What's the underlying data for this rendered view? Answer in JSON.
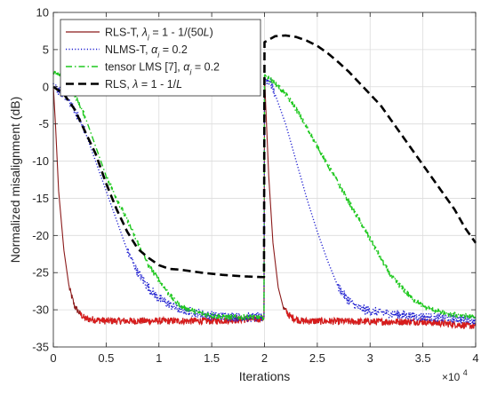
{
  "chart_data": {
    "type": "line",
    "xlabel": "Iterations",
    "ylabel": "Normalized misalignment (dB)",
    "x_multiplier_label": "×10",
    "x_multiplier_exp": "4",
    "xlim": [
      0,
      4
    ],
    "ylim": [
      -35,
      10
    ],
    "xticks": [
      0,
      0.5,
      1,
      1.5,
      2,
      2.5,
      3,
      3.5,
      4
    ],
    "xtick_labels": [
      "0",
      "0.5",
      "1",
      "1.5",
      "2",
      "2.5",
      "3",
      "3.5",
      "4"
    ],
    "yticks": [
      10,
      5,
      0,
      -5,
      -10,
      -15,
      -20,
      -25,
      -30,
      -35
    ],
    "ytick_labels": [
      "10",
      "5",
      "0",
      "-5",
      "-10",
      "-15",
      "-20",
      "-25",
      "-30",
      "-35"
    ],
    "grid": true,
    "legend_position": "top-left",
    "series": [
      {
        "name": "RLS-T, λ_i = 1 - 1/(50L)",
        "legend": [
          {
            "t": "RLS-T, "
          },
          {
            "t": "λ",
            "i": true
          },
          {
            "t": "i",
            "i": true,
            "sub": true
          },
          {
            "t": " = 1 - 1/(50"
          },
          {
            "t": "L",
            "i": true
          },
          {
            "t": ")"
          }
        ],
        "color": "#8B1A1A",
        "highlight_color": "#D81C1C",
        "dash": "solid",
        "noise": 0.45,
        "points": [
          [
            0,
            0
          ],
          [
            0.02,
            -5
          ],
          [
            0.05,
            -14
          ],
          [
            0.1,
            -22
          ],
          [
            0.15,
            -27
          ],
          [
            0.2,
            -29.5
          ],
          [
            0.25,
            -30.5
          ],
          [
            0.3,
            -31.2
          ],
          [
            0.5,
            -31.5
          ],
          [
            1.0,
            -31.5
          ],
          [
            1.5,
            -31.5
          ],
          [
            1.98,
            -31.2
          ],
          [
            1.995,
            -31
          ],
          [
            2.0,
            1.5
          ],
          [
            2.01,
            -2
          ],
          [
            2.04,
            -12
          ],
          [
            2.08,
            -21
          ],
          [
            2.13,
            -27
          ],
          [
            2.18,
            -29.8
          ],
          [
            2.25,
            -31
          ],
          [
            2.35,
            -31.5
          ],
          [
            3.0,
            -31.6
          ],
          [
            3.5,
            -31.6
          ],
          [
            4.0,
            -32.2
          ]
        ]
      },
      {
        "name": "NLMS-T, α_i = 0.2",
        "legend": [
          {
            "t": "NLMS-T, "
          },
          {
            "t": "α",
            "i": true
          },
          {
            "t": "i",
            "i": true,
            "sub": true
          },
          {
            "t": " = 0.2"
          }
        ],
        "color": "#1F1FD0",
        "dash": "dotted",
        "noise": 0.6,
        "points": [
          [
            0,
            0
          ],
          [
            0.1,
            -1
          ],
          [
            0.2,
            -3
          ],
          [
            0.3,
            -6
          ],
          [
            0.4,
            -10
          ],
          [
            0.5,
            -14
          ],
          [
            0.6,
            -18
          ],
          [
            0.7,
            -22
          ],
          [
            0.8,
            -25
          ],
          [
            0.9,
            -27
          ],
          [
            1.0,
            -28.5
          ],
          [
            1.2,
            -30
          ],
          [
            1.5,
            -30.8
          ],
          [
            1.8,
            -31
          ],
          [
            1.98,
            -31
          ],
          [
            1.995,
            -31
          ],
          [
            2.0,
            1
          ],
          [
            2.05,
            0.8
          ],
          [
            2.1,
            -1
          ],
          [
            2.2,
            -5
          ],
          [
            2.3,
            -10
          ],
          [
            2.4,
            -15
          ],
          [
            2.5,
            -19.5
          ],
          [
            2.6,
            -23.5
          ],
          [
            2.7,
            -27
          ],
          [
            2.8,
            -28.8
          ],
          [
            2.9,
            -29.8
          ],
          [
            3.0,
            -30.2
          ],
          [
            3.5,
            -31
          ],
          [
            4.0,
            -31.3
          ]
        ]
      },
      {
        "name": "tensor LMS [7], α_i = 0.2",
        "legend": [
          {
            "t": "tensor LMS [7], "
          },
          {
            "t": "α",
            "i": true
          },
          {
            "t": "i",
            "i": true,
            "sub": true
          },
          {
            "t": " = 0.2"
          }
        ],
        "color": "#1FC81F",
        "dash": "dashdot",
        "noise": 0.35,
        "points": [
          [
            0,
            2
          ],
          [
            0.1,
            1
          ],
          [
            0.2,
            -1
          ],
          [
            0.3,
            -4
          ],
          [
            0.4,
            -8
          ],
          [
            0.5,
            -12
          ],
          [
            0.6,
            -15
          ],
          [
            0.7,
            -18
          ],
          [
            0.8,
            -21
          ],
          [
            0.9,
            -24
          ],
          [
            1.0,
            -26
          ],
          [
            1.1,
            -28
          ],
          [
            1.2,
            -29.5
          ],
          [
            1.4,
            -30.5
          ],
          [
            1.6,
            -31
          ],
          [
            1.8,
            -31
          ],
          [
            1.98,
            -31
          ],
          [
            1.995,
            -31
          ],
          [
            2.0,
            1.5
          ],
          [
            2.1,
            0.5
          ],
          [
            2.2,
            -1
          ],
          [
            2.3,
            -3
          ],
          [
            2.4,
            -5.5
          ],
          [
            2.5,
            -8
          ],
          [
            2.6,
            -10.5
          ],
          [
            2.7,
            -13
          ],
          [
            2.8,
            -15.5
          ],
          [
            2.9,
            -18
          ],
          [
            3.0,
            -20.5
          ],
          [
            3.1,
            -23
          ],
          [
            3.2,
            -25.5
          ],
          [
            3.3,
            -27
          ],
          [
            3.4,
            -28.5
          ],
          [
            3.5,
            -29.5
          ],
          [
            3.7,
            -30.5
          ],
          [
            4.0,
            -31
          ]
        ]
      },
      {
        "name": "RLS, λ = 1 - 1/L",
        "legend": [
          {
            "t": "RLS, "
          },
          {
            "t": "λ",
            "i": true
          },
          {
            "t": " = 1 - 1/"
          },
          {
            "t": "L",
            "i": true
          }
        ],
        "color": "#000000",
        "dash": "dashed",
        "noise": 0,
        "points": [
          [
            0,
            0
          ],
          [
            0.05,
            -0.5
          ],
          [
            0.1,
            -1
          ],
          [
            0.2,
            -3
          ],
          [
            0.3,
            -6
          ],
          [
            0.4,
            -9
          ],
          [
            0.5,
            -13
          ],
          [
            0.6,
            -16.5
          ],
          [
            0.7,
            -19.5
          ],
          [
            0.8,
            -21.8
          ],
          [
            0.9,
            -23
          ],
          [
            1.0,
            -24
          ],
          [
            1.1,
            -24.5
          ],
          [
            1.2,
            -24.6
          ],
          [
            1.4,
            -25
          ],
          [
            1.6,
            -25.3
          ],
          [
            1.8,
            -25.5
          ],
          [
            1.98,
            -25.6
          ],
          [
            1.995,
            -25.6
          ],
          [
            2.0,
            6
          ],
          [
            2.1,
            6.8
          ],
          [
            2.2,
            6.9
          ],
          [
            2.3,
            6.7
          ],
          [
            2.4,
            6.2
          ],
          [
            2.5,
            5.5
          ],
          [
            2.6,
            4.5
          ],
          [
            2.7,
            3.3
          ],
          [
            2.8,
            2
          ],
          [
            2.9,
            0.5
          ],
          [
            3.0,
            -1
          ],
          [
            3.1,
            -2.5
          ],
          [
            3.2,
            -4.5
          ],
          [
            3.3,
            -6.5
          ],
          [
            3.4,
            -8.5
          ],
          [
            3.5,
            -10.5
          ],
          [
            3.6,
            -12.5
          ],
          [
            3.7,
            -14.5
          ],
          [
            3.8,
            -16.5
          ],
          [
            3.9,
            -19
          ],
          [
            4.0,
            -21
          ]
        ]
      }
    ]
  }
}
